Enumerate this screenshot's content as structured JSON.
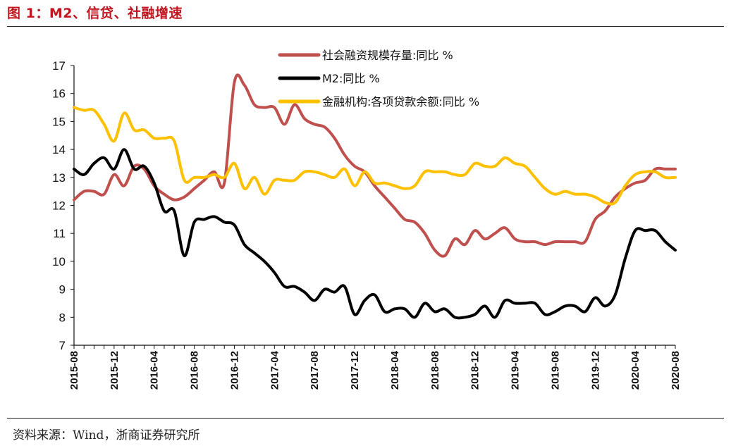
{
  "header": {
    "title": "图 1：M2、信贷、社融增速"
  },
  "footer": {
    "source": "资料来源：Wind，浙商证券研究所"
  },
  "chart_data": {
    "type": "line",
    "ylim": [
      7,
      17
    ],
    "yticks": [
      7,
      8,
      9,
      10,
      11,
      12,
      13,
      14,
      15,
      16,
      17
    ],
    "x_tick_labels": [
      "2015-08",
      "2015-12",
      "2016-04",
      "2016-08",
      "2016-12",
      "2017-04",
      "2017-08",
      "2017-12",
      "2018-04",
      "2018-08",
      "2018-12",
      "2019-04",
      "2019-08",
      "2019-12",
      "2020-04",
      "2020-08"
    ],
    "x": [
      "2015-08",
      "2015-09",
      "2015-10",
      "2015-11",
      "2015-12",
      "2016-01",
      "2016-02",
      "2016-03",
      "2016-04",
      "2016-05",
      "2016-06",
      "2016-07",
      "2016-08",
      "2016-09",
      "2016-10",
      "2016-11",
      "2016-12",
      "2017-01",
      "2017-02",
      "2017-03",
      "2017-04",
      "2017-05",
      "2017-06",
      "2017-07",
      "2017-08",
      "2017-09",
      "2017-10",
      "2017-11",
      "2017-12",
      "2018-01",
      "2018-02",
      "2018-03",
      "2018-04",
      "2018-05",
      "2018-06",
      "2018-07",
      "2018-08",
      "2018-09",
      "2018-10",
      "2018-11",
      "2018-12",
      "2019-01",
      "2019-02",
      "2019-03",
      "2019-04",
      "2019-05",
      "2019-06",
      "2019-07",
      "2019-08",
      "2019-09",
      "2019-10",
      "2019-11",
      "2019-12",
      "2020-01",
      "2020-02",
      "2020-03",
      "2020-04",
      "2020-05",
      "2020-06",
      "2020-07",
      "2020-08"
    ],
    "grid": false,
    "legend_position": "top-center",
    "series": [
      {
        "name": "社会融资规模存量:同比 %",
        "color": "#c0504d",
        "values": [
          12.2,
          12.5,
          12.5,
          12.4,
          13.1,
          12.7,
          13.4,
          13.3,
          12.7,
          12.4,
          12.2,
          12.3,
          12.6,
          12.9,
          13.2,
          12.8,
          16.4,
          16.3,
          15.6,
          15.5,
          15.5,
          14.9,
          15.6,
          15.1,
          14.9,
          14.8,
          14.4,
          13.8,
          13.4,
          13.2,
          12.7,
          12.3,
          11.9,
          11.5,
          11.4,
          11.0,
          10.4,
          10.2,
          10.8,
          10.6,
          11.1,
          10.8,
          11.0,
          11.2,
          10.8,
          10.7,
          10.7,
          10.6,
          10.7,
          10.7,
          10.7,
          10.7,
          11.5,
          11.8,
          12.3,
          12.6,
          12.8,
          12.9,
          13.3,
          13.3,
          13.3
        ]
      },
      {
        "name": "M2:同比 %",
        "color": "#000000",
        "values": [
          13.3,
          13.1,
          13.5,
          13.7,
          13.3,
          14.0,
          13.3,
          13.4,
          12.8,
          11.8,
          11.8,
          10.2,
          11.4,
          11.5,
          11.6,
          11.4,
          11.3,
          10.6,
          10.3,
          10.0,
          9.6,
          9.1,
          9.1,
          8.9,
          8.6,
          9.0,
          8.9,
          9.1,
          8.1,
          8.6,
          8.8,
          8.2,
          8.3,
          8.3,
          8.0,
          8.5,
          8.2,
          8.3,
          8.0,
          8.0,
          8.1,
          8.4,
          8.0,
          8.6,
          8.5,
          8.5,
          8.5,
          8.1,
          8.2,
          8.4,
          8.4,
          8.2,
          8.7,
          8.4,
          8.8,
          10.1,
          11.1,
          11.1,
          11.1,
          10.7,
          10.4
        ]
      },
      {
        "name": "金融机构:各项贷款余额:同比 %",
        "color": "#ffc000",
        "values": [
          15.5,
          15.4,
          15.4,
          14.9,
          14.3,
          15.3,
          14.7,
          14.7,
          14.4,
          14.4,
          14.3,
          12.9,
          13.0,
          13.0,
          13.1,
          13.0,
          13.5,
          12.6,
          13.0,
          12.4,
          12.9,
          12.9,
          12.9,
          13.2,
          13.2,
          13.1,
          13.0,
          13.3,
          12.7,
          13.2,
          12.8,
          12.8,
          12.7,
          12.6,
          12.7,
          13.2,
          13.2,
          13.2,
          13.1,
          13.1,
          13.5,
          13.4,
          13.4,
          13.7,
          13.5,
          13.4,
          13.0,
          12.6,
          12.4,
          12.5,
          12.4,
          12.4,
          12.3,
          12.1,
          12.1,
          12.7,
          13.1,
          13.2,
          13.2,
          13.0,
          13.0
        ]
      }
    ]
  }
}
